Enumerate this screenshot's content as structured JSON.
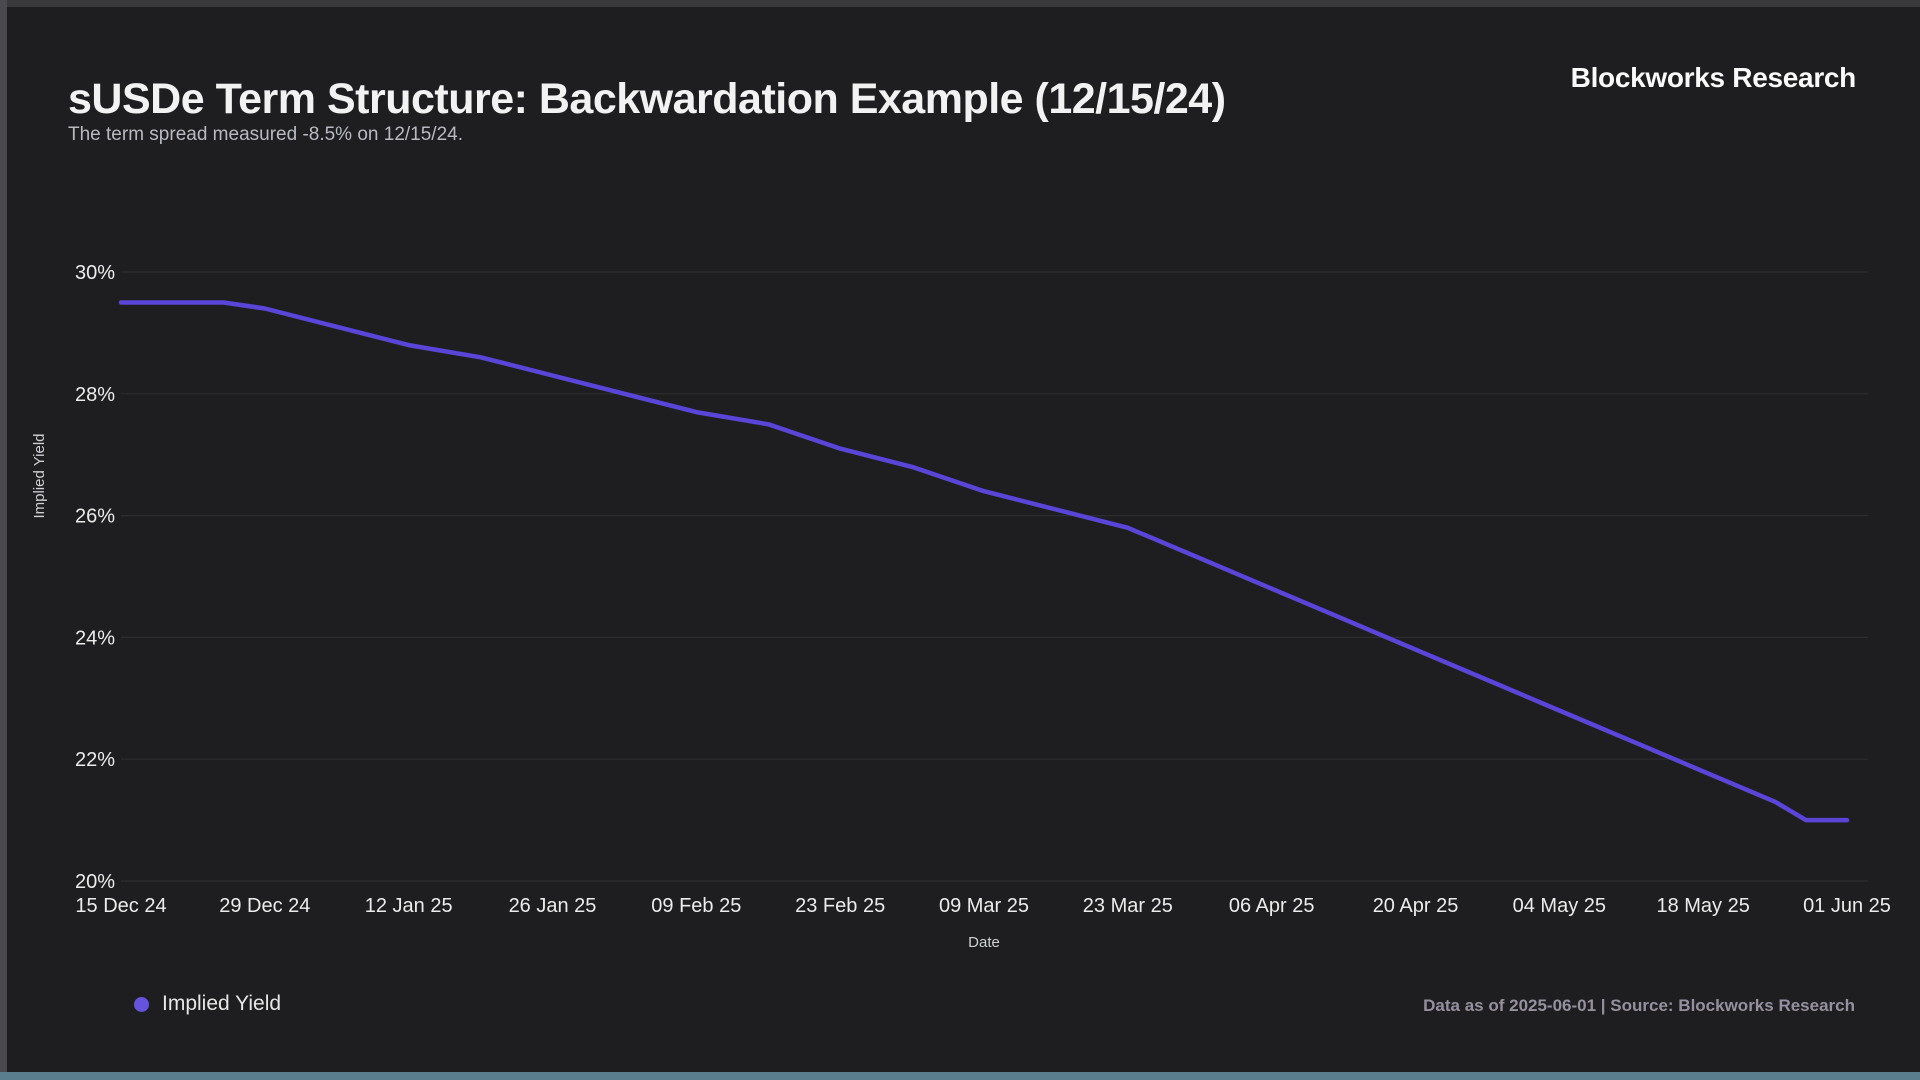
{
  "header": {
    "title": "sUSDe Term Structure: Backwardation Example (12/15/24)",
    "brand": "Blockworks Research",
    "subtitle": "The term spread measured -8.5% on 12/15/24."
  },
  "legend": {
    "label": "Implied Yield"
  },
  "footer": {
    "note": "Data as of 2025-06-01 | Source: Blockworks Research"
  },
  "colors": {
    "background": "#1e1e20",
    "line": "#5b45d8",
    "legend_dot": "#6553de",
    "gridline": "#2d2d30",
    "bottom_bar": "#5a7e8d"
  },
  "chart_data": {
    "type": "line",
    "title": "sUSDe Term Structure: Backwardation Example (12/15/24)",
    "xlabel": "Date",
    "ylabel": "Implied Yield",
    "ylim": [
      20,
      30
    ],
    "grid": "horizontal",
    "legend_position": "bottom-left",
    "x_total_days": 168,
    "yticks": [
      {
        "value": 20,
        "label": "20%"
      },
      {
        "value": 22,
        "label": "22%"
      },
      {
        "value": 24,
        "label": "24%"
      },
      {
        "value": 26,
        "label": "26%"
      },
      {
        "value": 28,
        "label": "28%"
      },
      {
        "value": 30,
        "label": "30%"
      }
    ],
    "xticks": [
      {
        "day": 0,
        "label": "15 Dec 24"
      },
      {
        "day": 14,
        "label": "29 Dec 24"
      },
      {
        "day": 28,
        "label": "12 Jan 25"
      },
      {
        "day": 42,
        "label": "26 Jan 25"
      },
      {
        "day": 56,
        "label": "09 Feb 25"
      },
      {
        "day": 70,
        "label": "23 Feb 25"
      },
      {
        "day": 84,
        "label": "09 Mar 25"
      },
      {
        "day": 98,
        "label": "23 Mar 25"
      },
      {
        "day": 112,
        "label": "06 Apr 25"
      },
      {
        "day": 126,
        "label": "20 Apr 25"
      },
      {
        "day": 140,
        "label": "04 May 25"
      },
      {
        "day": 154,
        "label": "18 May 25"
      },
      {
        "day": 168,
        "label": "01 Jun 25"
      }
    ],
    "series": [
      {
        "name": "Implied Yield",
        "color": "#5b45d8",
        "points": [
          {
            "date": "15 Dec 24",
            "day": 0,
            "value": 29.5
          },
          {
            "date": "22 Dec 24",
            "day": 7,
            "value": 29.5
          },
          {
            "date": "25 Dec 24",
            "day": 10,
            "value": 29.5
          },
          {
            "date": "29 Dec 24",
            "day": 14,
            "value": 29.4
          },
          {
            "date": "05 Jan 25",
            "day": 21,
            "value": 29.1
          },
          {
            "date": "12 Jan 25",
            "day": 28,
            "value": 28.8
          },
          {
            "date": "19 Jan 25",
            "day": 35,
            "value": 28.6
          },
          {
            "date": "26 Jan 25",
            "day": 42,
            "value": 28.3
          },
          {
            "date": "02 Feb 25",
            "day": 49,
            "value": 28.0
          },
          {
            "date": "09 Feb 25",
            "day": 56,
            "value": 27.7
          },
          {
            "date": "16 Feb 25",
            "day": 63,
            "value": 27.5
          },
          {
            "date": "23 Feb 25",
            "day": 70,
            "value": 27.1
          },
          {
            "date": "02 Mar 25",
            "day": 77,
            "value": 26.8
          },
          {
            "date": "09 Mar 25",
            "day": 84,
            "value": 26.4
          },
          {
            "date": "16 Mar 25",
            "day": 91,
            "value": 26.1
          },
          {
            "date": "23 Mar 25",
            "day": 98,
            "value": 25.8
          },
          {
            "date": "30 Mar 25",
            "day": 105,
            "value": 25.3
          },
          {
            "date": "06 Apr 25",
            "day": 112,
            "value": 24.8
          },
          {
            "date": "13 Apr 25",
            "day": 119,
            "value": 24.3
          },
          {
            "date": "20 Apr 25",
            "day": 126,
            "value": 23.8
          },
          {
            "date": "27 Apr 25",
            "day": 133,
            "value": 23.3
          },
          {
            "date": "04 May 25",
            "day": 140,
            "value": 22.8
          },
          {
            "date": "11 May 25",
            "day": 147,
            "value": 22.3
          },
          {
            "date": "18 May 25",
            "day": 154,
            "value": 21.8
          },
          {
            "date": "25 May 25",
            "day": 161,
            "value": 21.3
          },
          {
            "date": "28 May 25",
            "day": 164,
            "value": 21.0
          },
          {
            "date": "01 Jun 25",
            "day": 168,
            "value": 21.0
          }
        ]
      }
    ]
  }
}
